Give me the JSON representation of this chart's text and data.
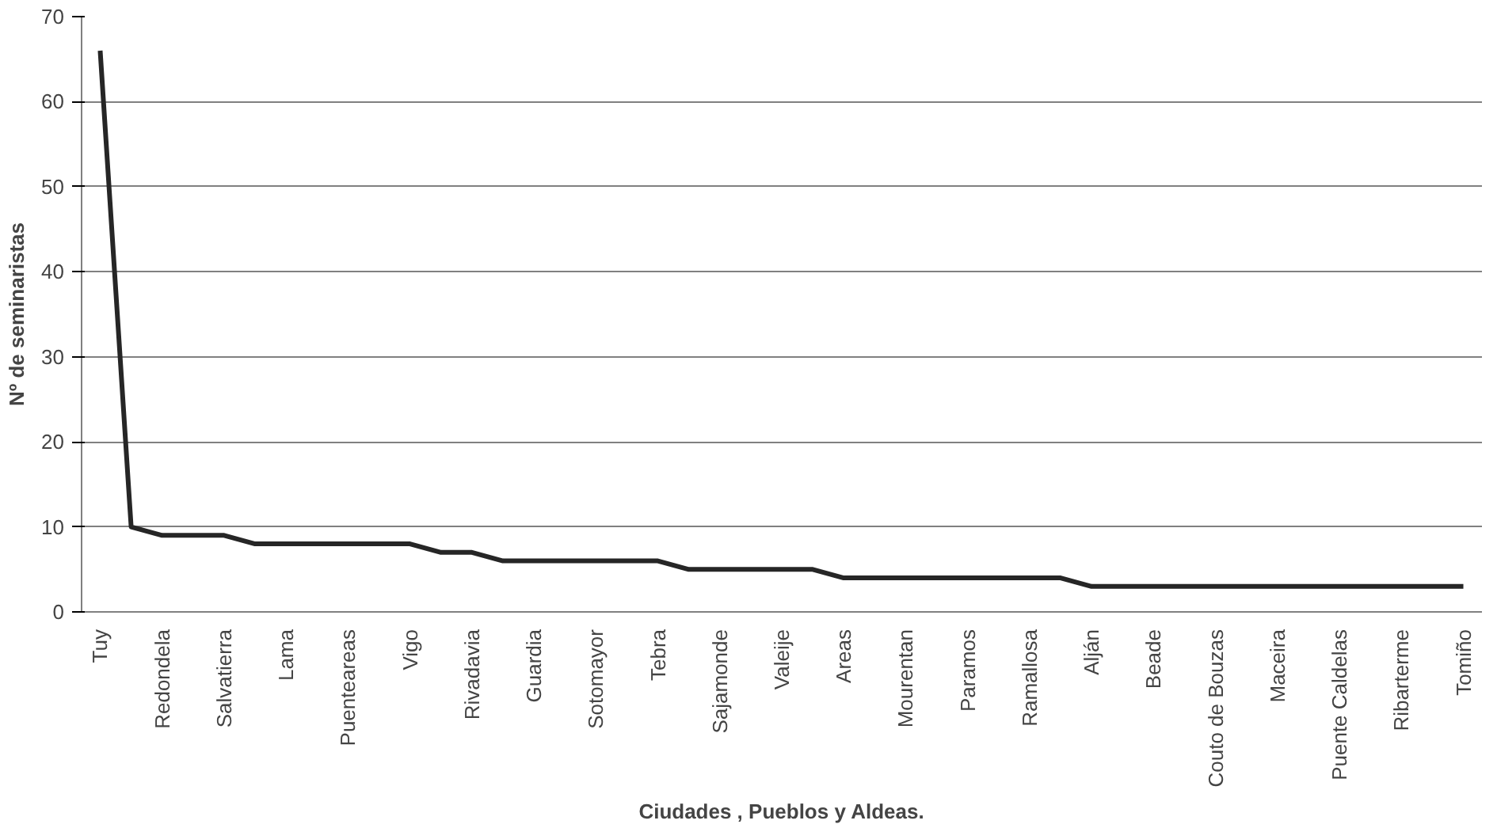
{
  "chart_data": {
    "type": "line",
    "xlabel": "Ciudades , Pueblos y Aldeas.",
    "ylabel": "Nº de seminaristas",
    "categories": [
      "Tuy",
      null,
      "Redondela",
      null,
      "Salvatierra",
      null,
      "Lama",
      null,
      "Puenteareas",
      null,
      "Vigo",
      null,
      "Rivadavia",
      null,
      "Guardia",
      null,
      "Sotomayor",
      null,
      "Tebra",
      null,
      "Sajamonde",
      null,
      "Valeije",
      null,
      "Areas",
      null,
      "Mourentan",
      null,
      "Paramos",
      null,
      "Ramallosa",
      null,
      "Alján",
      null,
      "Beade",
      null,
      "Couto de Bouzas",
      null,
      "Maceira",
      null,
      "Puente Caldelas",
      null,
      "Ribarterme",
      null,
      "Tomiño"
    ],
    "series": [
      {
        "color": "#262626",
        "values": [
          66,
          10,
          9,
          9,
          9,
          8,
          8,
          8,
          8,
          8,
          8,
          7,
          7,
          6,
          6,
          6,
          6,
          6,
          6,
          5,
          5,
          5,
          5,
          5,
          4,
          4,
          4,
          4,
          4,
          4,
          4,
          4,
          3,
          3,
          3,
          3,
          3,
          3,
          3,
          3,
          3,
          3,
          3,
          3,
          3
        ]
      }
    ],
    "ylim": [
      0,
      70
    ],
    "yticks": [
      0,
      10,
      20,
      30,
      40,
      50,
      60,
      70
    ],
    "grid": "y",
    "marker": "none",
    "line_style": "solid"
  }
}
